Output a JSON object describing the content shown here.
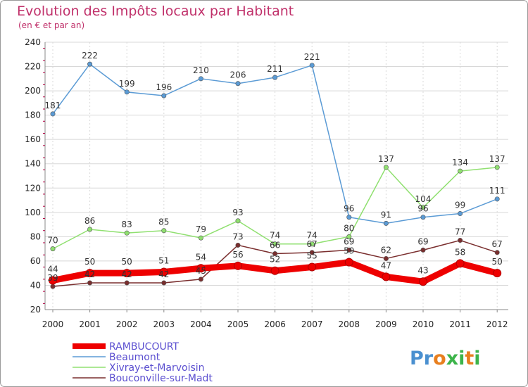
{
  "chart_data": {
    "type": "line",
    "title": "Evolution des Impôts locaux par Habitant",
    "subtitle": "(en € et par an)",
    "xlabel": "",
    "ylabel": "",
    "ylim": [
      20,
      240
    ],
    "yticks": [
      20,
      40,
      60,
      80,
      100,
      120,
      140,
      160,
      180,
      200,
      220,
      240
    ],
    "categories": [
      "2000",
      "2001",
      "2002",
      "2003",
      "2004",
      "2005",
      "2006",
      "2007",
      "2008",
      "2009",
      "2010",
      "2011",
      "2012"
    ],
    "grid": true,
    "series": [
      {
        "name": "RAMBUCOURT",
        "color": "#ee0000",
        "values": [
          44,
          50,
          50,
          51,
          54,
          56,
          52,
          55,
          59,
          47,
          43,
          58,
          50
        ]
      },
      {
        "name": "Beaumont",
        "color": "#5b9bd5",
        "values": [
          181,
          222,
          199,
          196,
          210,
          206,
          211,
          221,
          96,
          91,
          96,
          99,
          111
        ]
      },
      {
        "name": "Xivray-et-Marvoisin",
        "color": "#90e070",
        "values": [
          70,
          86,
          83,
          85,
          79,
          93,
          74,
          74,
          80,
          137,
          104,
          134,
          137
        ]
      },
      {
        "name": "Bouconville-sur-Madt",
        "color": "#7a2e2e",
        "values": [
          39,
          42,
          42,
          42,
          45,
          73,
          66,
          67,
          69,
          62,
          69,
          77,
          67
        ]
      }
    ]
  },
  "legend": {
    "text_color": "#5b4fd0"
  },
  "logo": {
    "text": "Proxiti",
    "letter_colors": [
      "#4a90d0",
      "#4a90d0",
      "#e87f1f",
      "#3cb44a",
      "#3cb44a",
      "#e87f1f",
      "#3cb44a"
    ]
  },
  "colors": {
    "title": "#c0306a",
    "grid": "#d8d8d8",
    "axis_tick": "#b00040"
  }
}
